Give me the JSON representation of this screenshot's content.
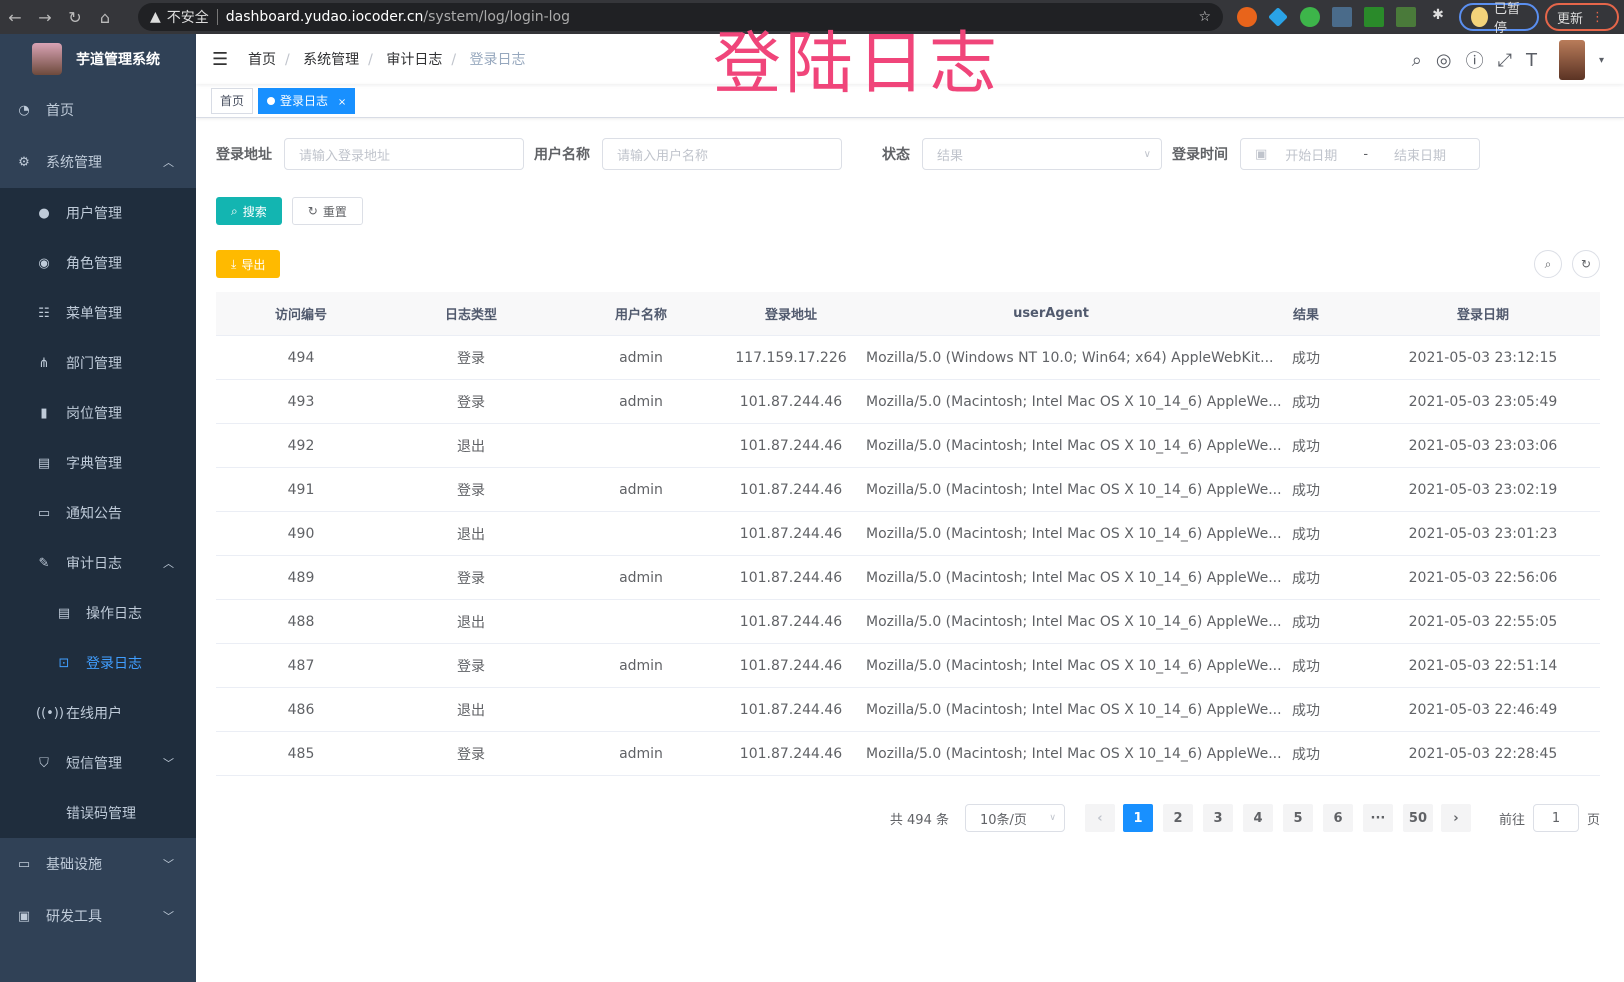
{
  "browser": {
    "warning": "不安全",
    "url_host": "dashboard.yudao.iocoder.cn",
    "url_path": "/system/log/login-log",
    "paused_label": "已暂停",
    "update_label": "更新"
  },
  "watermark": "登陆日志",
  "sidebar": {
    "title": "芋道管理系统",
    "items": [
      {
        "label": "首页",
        "icon": "dashboard-icon",
        "level": 1
      },
      {
        "label": "系统管理",
        "icon": "gear-icon",
        "level": 1,
        "expanded": true
      },
      {
        "label": "用户管理",
        "icon": "user-icon",
        "level": 2
      },
      {
        "label": "角色管理",
        "icon": "peoples-icon",
        "level": 2
      },
      {
        "label": "菜单管理",
        "icon": "tree-table-icon",
        "level": 2
      },
      {
        "label": "部门管理",
        "icon": "tree-icon",
        "level": 2
      },
      {
        "label": "岗位管理",
        "icon": "post-icon",
        "level": 2
      },
      {
        "label": "字典管理",
        "icon": "dict-icon",
        "level": 2
      },
      {
        "label": "通知公告",
        "icon": "message-icon",
        "level": 2
      },
      {
        "label": "审计日志",
        "icon": "log-icon",
        "level": 2,
        "expanded": true
      },
      {
        "label": "操作日志",
        "icon": "form-icon",
        "level": 3
      },
      {
        "label": "登录日志",
        "icon": "logininfor-icon",
        "level": 3,
        "active": true
      },
      {
        "label": "在线用户",
        "icon": "online-icon",
        "level": 2
      },
      {
        "label": "短信管理",
        "icon": "shield-icon",
        "level": 2,
        "collapsed": true
      },
      {
        "label": "错误码管理",
        "icon": "code-icon",
        "level": 2
      },
      {
        "label": "基础设施",
        "icon": "monitor-icon",
        "level": 1,
        "collapsed": true
      },
      {
        "label": "研发工具",
        "icon": "tool-icon",
        "level": 1,
        "collapsed": true
      }
    ]
  },
  "breadcrumb": [
    "首页",
    "系统管理",
    "审计日志",
    "登录日志"
  ],
  "tags": [
    {
      "label": "首页"
    },
    {
      "label": "登录日志",
      "active": true,
      "close": "×"
    }
  ],
  "filters": {
    "address": {
      "label": "登录地址",
      "placeholder": "请输入登录地址"
    },
    "username": {
      "label": "用户名称",
      "placeholder": "请输入用户名称"
    },
    "status": {
      "label": "状态",
      "placeholder": "结果"
    },
    "time": {
      "label": "登录时间",
      "start": "开始日期",
      "sep": "-",
      "end": "结束日期"
    }
  },
  "buttons": {
    "search": "搜索",
    "reset": "重置",
    "export": "导出"
  },
  "table": {
    "headers": [
      "访问编号",
      "日志类型",
      "用户名称",
      "登录地址",
      "userAgent",
      "结果",
      "登录日期"
    ],
    "rows": [
      [
        "494",
        "登录",
        "admin",
        "117.159.17.226",
        "Mozilla/5.0 (Windows NT 10.0; Win64; x64) AppleWebKit...",
        "成功",
        "2021-05-03 23:12:15"
      ],
      [
        "493",
        "登录",
        "admin",
        "101.87.244.46",
        "Mozilla/5.0 (Macintosh; Intel Mac OS X 10_14_6) AppleWe...",
        "成功",
        "2021-05-03 23:05:49"
      ],
      [
        "492",
        "退出",
        "",
        "101.87.244.46",
        "Mozilla/5.0 (Macintosh; Intel Mac OS X 10_14_6) AppleWe...",
        "成功",
        "2021-05-03 23:03:06"
      ],
      [
        "491",
        "登录",
        "admin",
        "101.87.244.46",
        "Mozilla/5.0 (Macintosh; Intel Mac OS X 10_14_6) AppleWe...",
        "成功",
        "2021-05-03 23:02:19"
      ],
      [
        "490",
        "退出",
        "",
        "101.87.244.46",
        "Mozilla/5.0 (Macintosh; Intel Mac OS X 10_14_6) AppleWe...",
        "成功",
        "2021-05-03 23:01:23"
      ],
      [
        "489",
        "登录",
        "admin",
        "101.87.244.46",
        "Mozilla/5.0 (Macintosh; Intel Mac OS X 10_14_6) AppleWe...",
        "成功",
        "2021-05-03 22:56:06"
      ],
      [
        "488",
        "退出",
        "",
        "101.87.244.46",
        "Mozilla/5.0 (Macintosh; Intel Mac OS X 10_14_6) AppleWe...",
        "成功",
        "2021-05-03 22:55:05"
      ],
      [
        "487",
        "登录",
        "admin",
        "101.87.244.46",
        "Mozilla/5.0 (Macintosh; Intel Mac OS X 10_14_6) AppleWe...",
        "成功",
        "2021-05-03 22:51:14"
      ],
      [
        "486",
        "退出",
        "",
        "101.87.244.46",
        "Mozilla/5.0 (Macintosh; Intel Mac OS X 10_14_6) AppleWe...",
        "成功",
        "2021-05-03 22:46:49"
      ],
      [
        "485",
        "登录",
        "admin",
        "101.87.244.46",
        "Mozilla/5.0 (Macintosh; Intel Mac OS X 10_14_6) AppleWe...",
        "成功",
        "2021-05-03 22:28:45"
      ]
    ]
  },
  "pagination": {
    "total": "共 494 条",
    "page_size": "10条/页",
    "pages": [
      "1",
      "2",
      "3",
      "4",
      "5",
      "6",
      "···",
      "50"
    ],
    "current": "1",
    "goto_label": "前往",
    "goto_value": "1",
    "goto_suffix": "页"
  },
  "colors": {
    "sidebar": "#304156",
    "submenu": "#1f2d3d",
    "primary": "#1890ff",
    "search": "#13c2c2",
    "export": "#ffba00",
    "watermark": "#f0457a"
  }
}
